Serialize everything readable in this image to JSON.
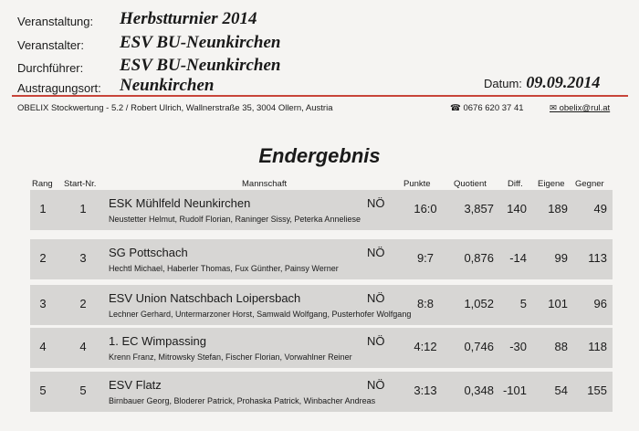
{
  "header": {
    "veranstaltung": {
      "label": "Veranstaltung:",
      "value": "Herbstturnier 2014"
    },
    "veranstalter": {
      "label": "Veranstalter:",
      "value": "ESV BU-Neunkirchen"
    },
    "durchfuehrer": {
      "label": "Durchführer:",
      "value": "ESV BU-Neunkirchen"
    },
    "austragungsort": {
      "label": "Austragungsort:",
      "value": "Neunkirchen"
    },
    "datum": {
      "label": "Datum:",
      "value": "09.09.2014"
    }
  },
  "info": {
    "software": "OBELIX Stockwertung - 5.2 / Robert Ulrich, Wallnerstraße 35, 3004 Ollern, Austria",
    "phone": "☎ 0676 620 37 41",
    "email": "✉ obelix@rul.at"
  },
  "title": "Endergebnis",
  "columns": {
    "rang": "Rang",
    "start": "Start-Nr.",
    "mannschaft": "Mannschaft",
    "punkte": "Punkte",
    "quotient": "Quotient",
    "diff": "Diff.",
    "eigene": "Eigene",
    "gegner": "Gegner"
  },
  "rows": [
    {
      "rang": "1",
      "start": "1",
      "team": "ESK Mühlfeld Neunkirchen",
      "state": "NÖ",
      "players": "Neustetter Helmut, Rudolf Florian, Raninger Sissy, Peterka Anneliese",
      "punkte": "16:0",
      "quotient": "3,857",
      "diff": "140",
      "eigene": "189",
      "gegner": "49"
    },
    {
      "rang": "2",
      "start": "3",
      "team": "SG Pottschach",
      "state": "NÖ",
      "players": "Hechtl Michael, Haberler Thomas, Fux Günther, Painsy Werner",
      "punkte": "9:7",
      "quotient": "0,876",
      "diff": "-14",
      "eigene": "99",
      "gegner": "113"
    },
    {
      "rang": "3",
      "start": "2",
      "team": "ESV Union Natschbach Loipersbach",
      "state": "NÖ",
      "players": "Lechner Gerhard, Untermarzoner Horst, Samwald Wolfgang, Pusterhofer Wolfgang",
      "punkte": "8:8",
      "quotient": "1,052",
      "diff": "5",
      "eigene": "101",
      "gegner": "96"
    },
    {
      "rang": "4",
      "start": "4",
      "team": "1. EC Wimpassing",
      "state": "NÖ",
      "players": "Krenn Franz, Mitrowsky Stefan, Fischer Florian, Vorwahlner Reiner",
      "punkte": "4:12",
      "quotient": "0,746",
      "diff": "-30",
      "eigene": "88",
      "gegner": "118"
    },
    {
      "rang": "5",
      "start": "5",
      "team": "ESV Flatz",
      "state": "NÖ",
      "players": "Birnbauer Georg, Bloderer Patrick, Prohaska Patrick, Winbacher Andreas",
      "punkte": "3:13",
      "quotient": "0,348",
      "diff": "-101",
      "eigene": "54",
      "gegner": "155"
    }
  ]
}
